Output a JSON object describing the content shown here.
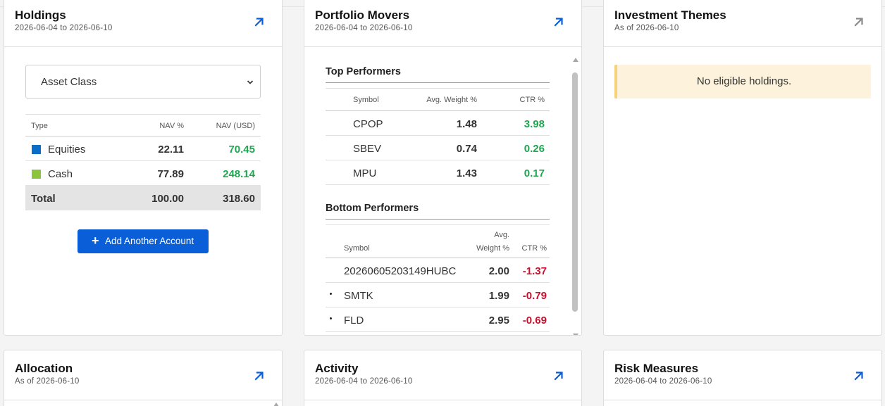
{
  "holdings": {
    "title": "Holdings",
    "date_range": "2026-06-04 to 2026-06-10",
    "select_value": "Asset Class",
    "columns": [
      "Type",
      "NAV %",
      "NAV (USD)"
    ],
    "rows": [
      {
        "type": "Equities",
        "nav_pct": "22.11",
        "nav_usd": "70.45",
        "color": "#0a6ec7"
      },
      {
        "type": "Cash",
        "nav_pct": "77.89",
        "nav_usd": "248.14",
        "color": "#8cc43c"
      }
    ],
    "total": {
      "label": "Total",
      "nav_pct": "100.00",
      "nav_usd": "318.60"
    },
    "add_button": "Add Another Account"
  },
  "movers": {
    "title": "Portfolio Movers",
    "date_range": "2026-06-04 to 2026-06-10",
    "top": {
      "title": "Top Performers",
      "columns": [
        "Symbol",
        "Avg. Weight %",
        "CTR %"
      ],
      "rows": [
        {
          "symbol": "CPOP",
          "weight": "1.48",
          "ctr": "3.98"
        },
        {
          "symbol": "SBEV",
          "weight": "0.74",
          "ctr": "0.26"
        },
        {
          "symbol": "MPU",
          "weight": "1.43",
          "ctr": "0.17"
        }
      ]
    },
    "bottom": {
      "title": "Bottom Performers",
      "columns": [
        "Symbol",
        "Avg.",
        "Weight %",
        "CTR %"
      ],
      "rows": [
        {
          "symbol": "20260605203149HUBC",
          "weight": "2.00",
          "ctr": "-1.37"
        },
        {
          "symbol": "SMTK",
          "weight": "1.99",
          "ctr": "-0.79"
        },
        {
          "symbol": "FLD",
          "weight": "2.95",
          "ctr": "-0.69"
        }
      ]
    }
  },
  "themes": {
    "title": "Investment Themes",
    "date_label": "As of 2026-06-10",
    "notice": "No eligible holdings."
  },
  "allocation": {
    "title": "Allocation",
    "date_label": "As of 2026-06-10"
  },
  "activity": {
    "title": "Activity",
    "date_range": "2026-06-04 to 2026-06-10"
  },
  "risk": {
    "title": "Risk Measures",
    "date_range": "2026-06-04 to 2026-06-10"
  },
  "colors": {
    "accent": "#0a5ed7",
    "positive": "#1fa750",
    "negative": "#c8102e",
    "notice_bg": "#fdf3dc"
  }
}
